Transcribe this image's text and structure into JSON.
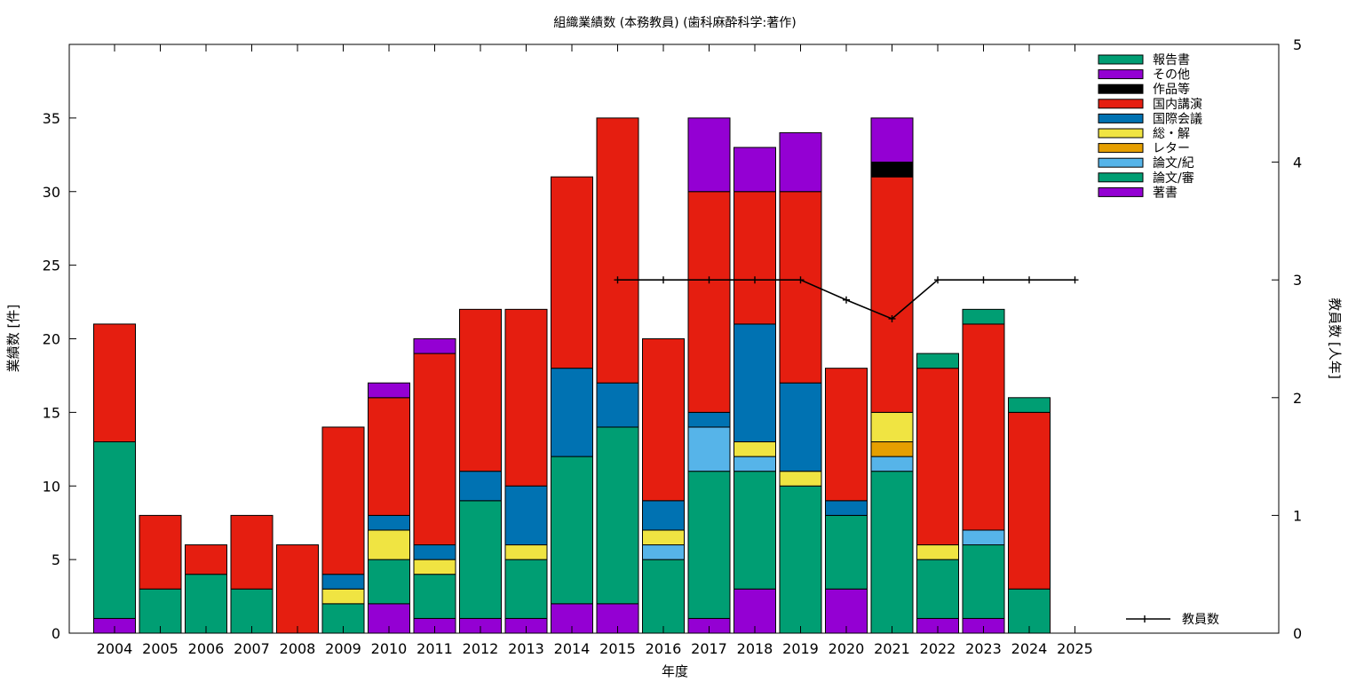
{
  "chart_data": {
    "type": "bar",
    "stacked": true,
    "title": "組織業績数 (本務教員) (歯科麻酔科学:著作)",
    "xlabel": "年度",
    "ylabel": "業績数 [件]",
    "y2label": "教員数 [人年]",
    "ylim": [
      0,
      40
    ],
    "y2lim": [
      0,
      5
    ],
    "yticks": [
      "0",
      "5",
      "10",
      "15",
      "20",
      "25",
      "30",
      "35"
    ],
    "y2ticks": [
      "0",
      "1",
      "2",
      "3",
      "4",
      "5"
    ],
    "grid": false,
    "legend_position": "top-right",
    "categories": [
      "2004",
      "2005",
      "2006",
      "2007",
      "2008",
      "2009",
      "2010",
      "2011",
      "2012",
      "2013",
      "2014",
      "2015",
      "2016",
      "2017",
      "2018",
      "2019",
      "2020",
      "2021",
      "2022",
      "2023",
      "2024",
      "2025"
    ],
    "series": [
      {
        "name": "著書",
        "color": "#9400d3",
        "values": [
          1,
          0,
          0,
          0,
          0,
          0,
          2,
          1,
          1,
          1,
          2,
          2,
          0,
          1,
          3,
          0,
          3,
          0,
          1,
          1,
          0,
          0
        ]
      },
      {
        "name": "論文/審",
        "color": "#009e73",
        "values": [
          12,
          3,
          4,
          3,
          0,
          2,
          3,
          3,
          8,
          4,
          10,
          12,
          5,
          10,
          8,
          10,
          5,
          11,
          4,
          5,
          3,
          0
        ]
      },
      {
        "name": "論文/紀",
        "color": "#56b4e9",
        "values": [
          0,
          0,
          0,
          0,
          0,
          0,
          0,
          0,
          0,
          0,
          0,
          0,
          1,
          3,
          1,
          0,
          0,
          1,
          0,
          1,
          0,
          0
        ]
      },
      {
        "name": "レター",
        "color": "#e69f00",
        "values": [
          0,
          0,
          0,
          0,
          0,
          0,
          0,
          0,
          0,
          0,
          0,
          0,
          0,
          0,
          0,
          0,
          0,
          1,
          0,
          0,
          0,
          0
        ]
      },
      {
        "name": "総・解",
        "color": "#f0e442",
        "values": [
          0,
          0,
          0,
          0,
          0,
          1,
          2,
          1,
          0,
          1,
          0,
          0,
          1,
          0,
          1,
          1,
          0,
          2,
          1,
          0,
          0,
          0
        ]
      },
      {
        "name": "国際会議",
        "color": "#0072b2",
        "values": [
          0,
          0,
          0,
          0,
          0,
          1,
          1,
          1,
          2,
          4,
          6,
          3,
          2,
          1,
          8,
          6,
          1,
          0,
          0,
          0,
          0,
          0
        ]
      },
      {
        "name": "国内講演",
        "color": "#e51e10",
        "values": [
          8,
          5,
          2,
          5,
          6,
          10,
          8,
          13,
          11,
          12,
          13,
          18,
          11,
          15,
          9,
          13,
          9,
          16,
          12,
          14,
          12,
          0
        ]
      },
      {
        "name": "作品等",
        "color": "#000000",
        "values": [
          0,
          0,
          0,
          0,
          0,
          0,
          0,
          0,
          0,
          0,
          0,
          0,
          0,
          0,
          0,
          0,
          0,
          1,
          0,
          0,
          0,
          0
        ]
      },
      {
        "name": "その他",
        "color": "#9400d3",
        "values": [
          0,
          0,
          0,
          0,
          0,
          0,
          1,
          1,
          0,
          0,
          0,
          0,
          0,
          5,
          3,
          4,
          0,
          3,
          0,
          0,
          0,
          0
        ]
      },
      {
        "name": "報告書",
        "color": "#009e73",
        "values": [
          0,
          0,
          0,
          0,
          0,
          0,
          0,
          0,
          0,
          0,
          0,
          0,
          0,
          0,
          0,
          0,
          0,
          0,
          1,
          1,
          1,
          0
        ]
      }
    ],
    "line_series": {
      "name": "教員数",
      "axis": "y2",
      "color": "#000000",
      "x": [
        "2015",
        "2016",
        "2017",
        "2018",
        "2019",
        "2020",
        "2021",
        "2022",
        "2023",
        "2024",
        "2025"
      ],
      "values": [
        3,
        3,
        3,
        3,
        3,
        2.83,
        2.67,
        3,
        3,
        3,
        3
      ]
    }
  }
}
